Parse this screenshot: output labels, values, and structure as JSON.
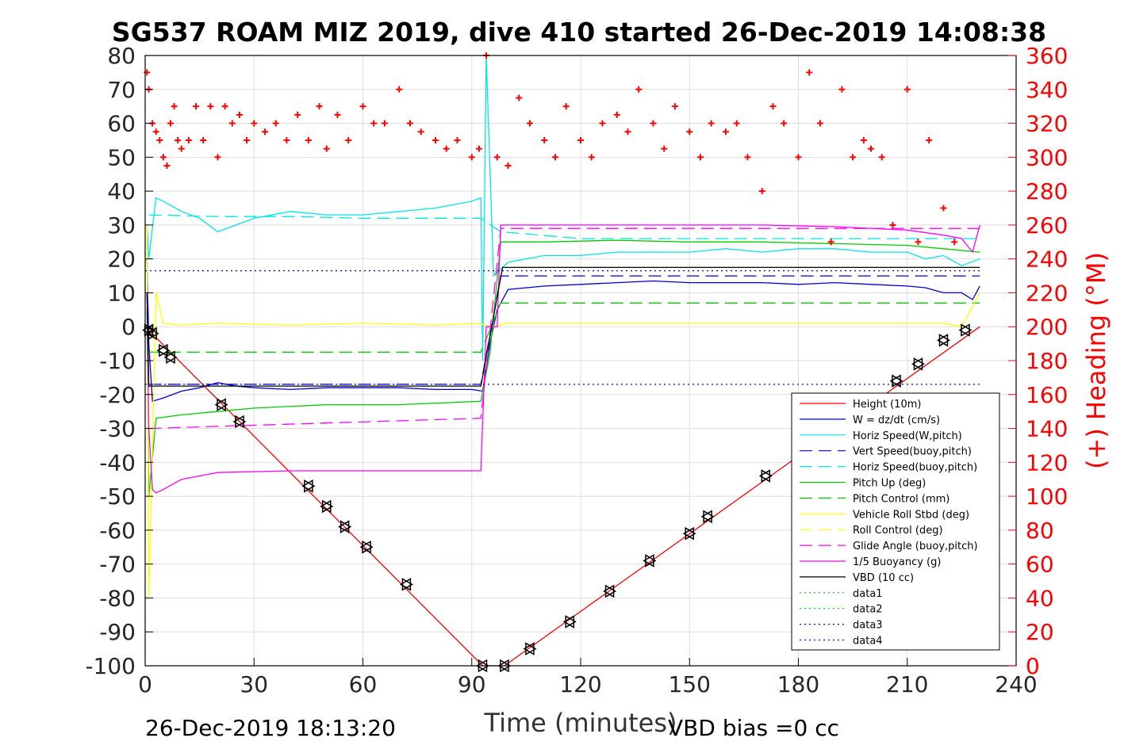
{
  "chart_data": {
    "type": "line",
    "title": "SG537 ROAM MIZ 2019, dive 410 started 26-Dec-2019 14:08:38",
    "xlabel": "Time (minutes)",
    "ylabel_left": "",
    "ylabel_right": "(+) Heading (°M)",
    "footer_left": "26-Dec-2019 18:13:20",
    "footer_right": "VBD bias =0 cc",
    "xlim": [
      0,
      240
    ],
    "ylim": [
      -100,
      80
    ],
    "ylim_right": [
      0,
      360
    ],
    "x_ticks": [
      "0",
      "30",
      "60",
      "90",
      "120",
      "150",
      "180",
      "210",
      "240"
    ],
    "x_tick_values": [
      0,
      30,
      60,
      90,
      120,
      150,
      180,
      210,
      240
    ],
    "y_ticks": [
      "80",
      "70",
      "60",
      "50",
      "40",
      "30",
      "20",
      "10",
      "0",
      "-10",
      "-20",
      "-30",
      "-40",
      "-50",
      "-60",
      "-70",
      "-80",
      "-90",
      "-100"
    ],
    "y_tick_values": [
      80,
      70,
      60,
      50,
      40,
      30,
      20,
      10,
      0,
      -10,
      -20,
      -30,
      -40,
      -50,
      -60,
      -70,
      -80,
      -90,
      -100
    ],
    "y2_ticks": [
      "360",
      "340",
      "320",
      "300",
      "280",
      "260",
      "240",
      "220",
      "200",
      "180",
      "160",
      "140",
      "120",
      "100",
      "80",
      "60",
      "40",
      "20",
      "0"
    ],
    "y2_tick_values": [
      360,
      340,
      320,
      300,
      280,
      260,
      240,
      220,
      200,
      180,
      160,
      140,
      120,
      100,
      80,
      60,
      40,
      20,
      0
    ],
    "grid": true,
    "legend_position": "bottom-right",
    "series": [
      {
        "name": "Height (10m)",
        "color": "#ff0000",
        "style": "solid",
        "x": [
          0,
          93,
          99,
          230
        ],
        "y": [
          0,
          -100,
          -100,
          0
        ]
      },
      {
        "name": "W = dz/dt (cm/s)",
        "color": "#0000cc",
        "style": "solid",
        "x": [
          0.5,
          1,
          2,
          5,
          10,
          15,
          20,
          25,
          30,
          40,
          50,
          60,
          70,
          80,
          90,
          93,
          95,
          97,
          100,
          110,
          120,
          130,
          140,
          150,
          160,
          170,
          180,
          190,
          200,
          210,
          215,
          220,
          225,
          228,
          230
        ],
        "y": [
          20,
          -5,
          -22,
          -21,
          -19,
          -18,
          -16.5,
          -17.5,
          -18,
          -18.5,
          -18,
          -18,
          -18,
          -18.5,
          -18.5,
          -19,
          -5,
          5,
          11,
          12,
          12.5,
          13,
          13.5,
          13,
          13,
          13,
          12.5,
          13,
          12.5,
          12,
          11.5,
          10,
          10,
          8,
          12
        ]
      },
      {
        "name": "Horiz Speed(W,pitch)",
        "color": "#00e5e5",
        "style": "solid",
        "x": [
          0.5,
          1,
          3,
          5,
          10,
          15,
          20,
          25,
          30,
          40,
          50,
          60,
          70,
          80,
          90,
          92.5,
          93,
          94,
          96,
          100,
          110,
          120,
          130,
          140,
          150,
          160,
          170,
          180,
          190,
          200,
          210,
          215,
          220,
          225,
          230
        ],
        "y": [
          30,
          20,
          38,
          37,
          34,
          32,
          28,
          30,
          32,
          34,
          33,
          33,
          34,
          35,
          37,
          38,
          -10,
          80,
          15,
          19,
          21,
          21,
          22,
          22,
          22,
          23,
          22,
          23,
          23,
          22,
          22,
          20,
          21,
          18,
          20
        ]
      },
      {
        "name": "Vert Speed(buoy,pitch)",
        "color": "#0000cc",
        "style": "dashed",
        "x": [
          1,
          92.5,
          98,
          230
        ],
        "y": [
          -17,
          -17,
          15,
          15
        ]
      },
      {
        "name": "Horiz Speed(buoy,pitch)",
        "color": "#00e5e5",
        "style": "dashed",
        "x": [
          1,
          20,
          40,
          60,
          92.5,
          98,
          120,
          150,
          180,
          210,
          230
        ],
        "y": [
          33,
          32.5,
          32.5,
          32,
          32,
          28,
          26,
          26,
          26,
          26,
          26
        ]
      },
      {
        "name": "Pitch Up (deg)",
        "color": "#00cc00",
        "style": "solid",
        "x": [
          0.5,
          1,
          3,
          10,
          20,
          30,
          50,
          70,
          92.5,
          95,
          98,
          110,
          130,
          150,
          170,
          190,
          210,
          220,
          230
        ],
        "y": [
          5,
          -50,
          -27,
          -26,
          -25,
          -24,
          -23,
          -23,
          -22,
          -8,
          25,
          25,
          25.5,
          25,
          25,
          24.5,
          24,
          23,
          22
        ]
      },
      {
        "name": "Pitch Control (mm)",
        "color": "#00cc00",
        "style": "dashed",
        "x": [
          1,
          92.5,
          98,
          230
        ],
        "y": [
          -7.5,
          -7.5,
          7,
          7
        ]
      },
      {
        "name": "Vehicle Roll Stbd (deg)",
        "color": "#ffff00",
        "style": "solid",
        "x": [
          0.5,
          1,
          3,
          5,
          10,
          20,
          40,
          60,
          80,
          92.5,
          95,
          100,
          130,
          160,
          190,
          210,
          220,
          225,
          230
        ],
        "y": [
          30,
          -80,
          10,
          1,
          0.5,
          1,
          0.5,
          1,
          0.5,
          1,
          0,
          1,
          1,
          1,
          1,
          1,
          1,
          0,
          10
        ]
      },
      {
        "name": "Roll Control (deg)",
        "color": "#ffff00",
        "style": "dashed",
        "x": [],
        "y": []
      },
      {
        "name": "Glide Angle (buoy,pitch)",
        "color": "#ff00ff",
        "style": "dashed",
        "x": [
          1,
          92.5,
          98,
          230
        ],
        "y": [
          -30,
          -27,
          29,
          29
        ]
      },
      {
        "name": "1/5 Buoyancy (g)",
        "color": "#ff00ff",
        "style": "solid",
        "x": [
          0.5,
          1,
          2,
          3,
          5,
          10,
          20,
          40,
          60,
          80,
          92.5,
          94,
          97,
          98,
          110,
          130,
          150,
          170,
          190,
          210,
          220,
          225,
          228,
          230
        ],
        "y": [
          10,
          -30,
          -48,
          -49,
          -48,
          -45,
          -43,
          -42.5,
          -42.5,
          -42.5,
          -42.5,
          0,
          0,
          30,
          30,
          30,
          30,
          30,
          29.5,
          28.5,
          27,
          26,
          22,
          30
        ]
      },
      {
        "name": "VBD (10 cc)",
        "color": "#000000",
        "style": "solid",
        "x": [
          0.5,
          1,
          2,
          92.5,
          95.5,
          98.5,
          230
        ],
        "y": [
          10,
          -17.5,
          -17.5,
          -17.5,
          0,
          17.5,
          17.5
        ]
      },
      {
        "name": "data1",
        "color": "#00cc00",
        "style": "dotted",
        "x": [],
        "y": []
      },
      {
        "name": "data2",
        "color": "#00cc00",
        "style": "dotted",
        "x": [],
        "y": []
      },
      {
        "name": "data3",
        "color": "#0000cc",
        "style": "dotted",
        "x": [
          0,
          230
        ],
        "y": [
          16.5,
          16.5
        ]
      },
      {
        "name": "data4",
        "color": "#0000cc",
        "style": "dotted",
        "x": [
          0,
          230
        ],
        "y": [
          -17,
          -17
        ]
      }
    ],
    "heading_series": {
      "color": "#ff0000",
      "marker": "+",
      "axis": "right",
      "x": [
        0.5,
        1,
        2,
        3,
        4,
        5,
        6,
        7,
        8,
        9,
        10,
        12,
        14,
        16,
        18,
        20,
        22,
        24,
        26,
        28,
        30,
        33,
        36,
        39,
        42,
        45,
        48,
        50,
        53,
        56,
        60,
        63,
        66,
        70,
        73,
        76,
        80,
        83,
        86,
        90,
        92,
        94,
        97,
        100,
        103,
        106,
        110,
        113,
        116,
        120,
        123,
        126,
        130,
        133,
        136,
        140,
        143,
        146,
        150,
        153,
        156,
        160,
        163,
        166,
        170,
        173,
        176,
        180,
        183,
        186,
        189,
        192,
        195,
        198,
        200,
        203,
        206,
        210,
        213,
        216,
        220,
        223
      ],
      "y": [
        350,
        340,
        320,
        315,
        310,
        300,
        295,
        320,
        330,
        310,
        305,
        310,
        330,
        310,
        330,
        300,
        330,
        320,
        325,
        310,
        320,
        315,
        320,
        310,
        325,
        310,
        330,
        305,
        325,
        310,
        330,
        320,
        320,
        340,
        320,
        315,
        310,
        305,
        310,
        300,
        305,
        360,
        300,
        295,
        335,
        320,
        310,
        300,
        330,
        310,
        300,
        320,
        325,
        315,
        340,
        320,
        305,
        330,
        315,
        300,
        320,
        315,
        320,
        300,
        280,
        330,
        320,
        300,
        350,
        320,
        250,
        340,
        300,
        310,
        305,
        300,
        260,
        340,
        250,
        310,
        270,
        250
      ]
    },
    "marker_series": {
      "color": "#000000",
      "marker": "triangles",
      "x": [
        1,
        2,
        5,
        7,
        21,
        26,
        45,
        50,
        55,
        61,
        72,
        93,
        99,
        106,
        117,
        128,
        139,
        150,
        155,
        171,
        207,
        213,
        220,
        226
      ],
      "y": [
        -1,
        -2,
        -7,
        -9,
        -23,
        -28,
        -47,
        -53,
        -59,
        -65,
        -76,
        -100,
        -100,
        -95,
        -87,
        -78,
        -69,
        -61,
        -56,
        -44,
        -16,
        -11,
        -4,
        -1
      ]
    }
  }
}
